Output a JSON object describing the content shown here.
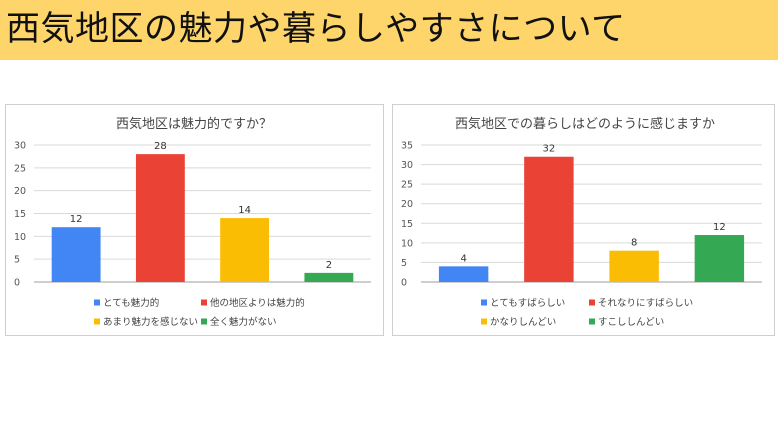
{
  "header": {
    "title": "西気地区の魅力や暮らしやすさについて",
    "background": "#fdd56b"
  },
  "chart_data": [
    {
      "type": "bar",
      "title": "西気地区は魅力的ですか？",
      "categories": [
        "とても魅力的",
        "他の地区よりは魅力的",
        "あまり魅力を感じない",
        "全く魅力がない"
      ],
      "values": [
        12,
        28,
        14,
        2
      ],
      "colors": [
        "#4285f4",
        "#ea4335",
        "#fbbc04",
        "#34a853"
      ],
      "ylim": [
        0,
        30
      ],
      "yticks": [
        0,
        5,
        10,
        15,
        20,
        25,
        30
      ],
      "grid": true,
      "legend_position": "bottom"
    },
    {
      "type": "bar",
      "title": "西気地区での暮らしはどのように感じますか",
      "categories": [
        "とてもすばらしい",
        "それなりにすばらしい",
        "かなりしんどい",
        "すこししんどい"
      ],
      "values": [
        4,
        32,
        8,
        12
      ],
      "colors": [
        "#4285f4",
        "#ea4335",
        "#fbbc04",
        "#34a853"
      ],
      "ylim": [
        0,
        35
      ],
      "yticks": [
        0,
        5,
        10,
        15,
        20,
        25,
        30,
        35
      ],
      "grid": true,
      "legend_position": "bottom"
    }
  ]
}
